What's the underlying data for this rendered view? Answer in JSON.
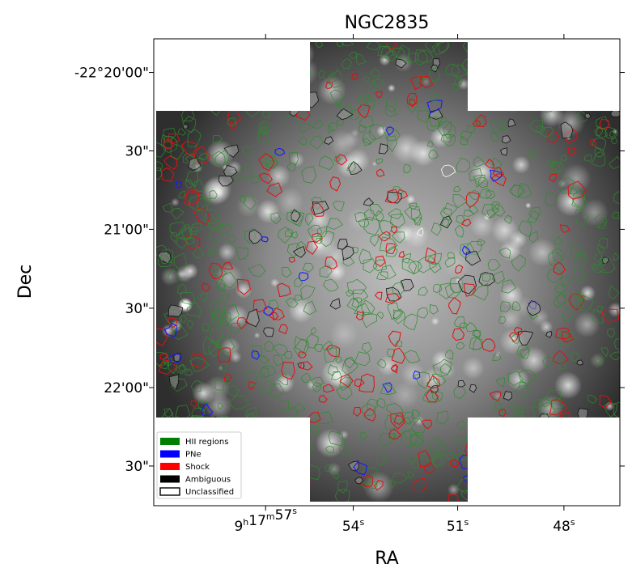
{
  "chart_data": {
    "type": "image",
    "title": "NGC2835",
    "xlabel": "RA",
    "ylabel": "Dec",
    "x_ticks": [
      {
        "h": "9",
        "m": "17",
        "s": "57",
        "pos": 0.24
      },
      {
        "s": "54",
        "pos": 0.428
      },
      {
        "s": "51",
        "pos": 0.652
      },
      {
        "s": "48",
        "pos": 0.88
      }
    ],
    "y_ticks": [
      {
        "label": "-22°20'00\"",
        "pos": 0.072
      },
      {
        "label": "30\"",
        "pos": 0.24
      },
      {
        "label": "21'00\"",
        "pos": 0.408
      },
      {
        "label": "30\"",
        "pos": 0.577
      },
      {
        "label": "22'00\"",
        "pos": 0.747
      },
      {
        "label": "30\"",
        "pos": 0.915
      }
    ],
    "legend": {
      "placement": "lower-left",
      "entries": [
        {
          "label": "HII regions",
          "color": "#008000",
          "filled": true
        },
        {
          "label": "PNe",
          "color": "#0000ff",
          "filled": true
        },
        {
          "label": "Shock",
          "color": "#ff0000",
          "filled": true
        },
        {
          "label": "Ambiguous",
          "color": "#000000",
          "filled": true
        },
        {
          "label": "Unclassified",
          "color": "#000000",
          "filled": false
        }
      ]
    },
    "background": "grayscale image",
    "region_outline_colors": {
      "hii": "#2e8b2e",
      "pne": "#1a1aff",
      "shock": "#e01010",
      "ambiguous": "#111111",
      "unclassified": "#ffffff"
    }
  }
}
